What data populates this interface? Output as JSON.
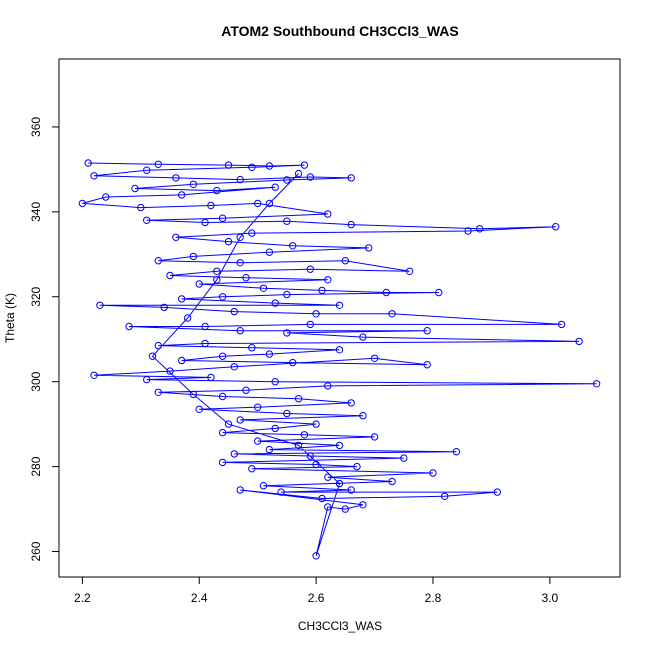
{
  "chart_data": {
    "type": "scatter",
    "title": "ATOM2 Southbound CH3CCl3_WAS",
    "xlabel": "CH3CCl3_WAS",
    "ylabel": "Theta (K)",
    "xlim": [
      2.16,
      3.12
    ],
    "ylim": [
      254,
      376
    ],
    "xticks": [
      2.2,
      2.4,
      2.6,
      2.8,
      3.0
    ],
    "xtick_labels": [
      "2.2",
      "2.4",
      "2.6",
      "2.8",
      "3.0"
    ],
    "yticks": [
      260,
      280,
      300,
      320,
      340,
      360
    ],
    "ytick_labels": [
      "260",
      "280",
      "300",
      "320",
      "340",
      "360"
    ],
    "grid": false,
    "series": [
      {
        "color": "#0000ff",
        "marker": "open-circle",
        "connected": true,
        "points": [
          [
            2.21,
            351.5
          ],
          [
            2.33,
            351.2
          ],
          [
            2.45,
            351.0
          ],
          [
            2.52,
            350.8
          ],
          [
            2.58,
            351.0
          ],
          [
            2.49,
            350.5
          ],
          [
            2.31,
            349.8
          ],
          [
            2.22,
            348.5
          ],
          [
            2.36,
            348.0
          ],
          [
            2.47,
            347.6
          ],
          [
            2.59,
            348.2
          ],
          [
            2.66,
            348.0
          ],
          [
            2.55,
            347.5
          ],
          [
            2.39,
            346.5
          ],
          [
            2.29,
            345.5
          ],
          [
            2.43,
            345.0
          ],
          [
            2.53,
            345.8
          ],
          [
            2.37,
            344.0
          ],
          [
            2.24,
            343.5
          ],
          [
            2.2,
            342.0
          ],
          [
            2.3,
            341.0
          ],
          [
            2.42,
            341.5
          ],
          [
            2.5,
            342.0
          ],
          [
            2.62,
            339.5
          ],
          [
            2.44,
            338.5
          ],
          [
            2.31,
            338.0
          ],
          [
            2.41,
            337.5
          ],
          [
            2.55,
            337.8
          ],
          [
            2.66,
            337.0
          ],
          [
            2.88,
            336.0
          ],
          [
            3.01,
            336.5
          ],
          [
            2.86,
            335.5
          ],
          [
            2.49,
            335.0
          ],
          [
            2.36,
            334.0
          ],
          [
            2.45,
            333.0
          ],
          [
            2.56,
            332.0
          ],
          [
            2.69,
            331.5
          ],
          [
            2.52,
            330.5
          ],
          [
            2.39,
            329.5
          ],
          [
            2.33,
            328.5
          ],
          [
            2.47,
            328.0
          ],
          [
            2.65,
            328.5
          ],
          [
            2.76,
            326.0
          ],
          [
            2.59,
            326.5
          ],
          [
            2.43,
            326.0
          ],
          [
            2.35,
            325.0
          ],
          [
            2.48,
            324.5
          ],
          [
            2.62,
            324.0
          ],
          [
            2.4,
            323.0
          ],
          [
            2.51,
            322.0
          ],
          [
            2.61,
            321.5
          ],
          [
            2.72,
            321.0
          ],
          [
            2.81,
            321.0
          ],
          [
            2.55,
            320.5
          ],
          [
            2.44,
            320.0
          ],
          [
            2.37,
            319.5
          ],
          [
            2.53,
            318.5
          ],
          [
            2.64,
            318.0
          ],
          [
            2.23,
            318.0
          ],
          [
            2.34,
            317.5
          ],
          [
            2.46,
            316.5
          ],
          [
            2.6,
            316.0
          ],
          [
            2.73,
            316.0
          ],
          [
            3.02,
            313.5
          ],
          [
            2.59,
            313.5
          ],
          [
            2.41,
            313.0
          ],
          [
            2.28,
            313.0
          ],
          [
            2.47,
            312.0
          ],
          [
            2.79,
            312.0
          ],
          [
            2.55,
            311.5
          ],
          [
            2.68,
            310.5
          ],
          [
            3.05,
            309.5
          ],
          [
            2.41,
            309.0
          ],
          [
            2.33,
            308.5
          ],
          [
            2.49,
            308.0
          ],
          [
            2.64,
            307.5
          ],
          [
            2.52,
            306.5
          ],
          [
            2.44,
            306.0
          ],
          [
            2.37,
            305.0
          ],
          [
            2.56,
            304.5
          ],
          [
            2.79,
            304.0
          ],
          [
            2.7,
            305.5
          ],
          [
            2.46,
            303.5
          ],
          [
            2.35,
            302.5
          ],
          [
            2.22,
            301.5
          ],
          [
            2.42,
            301.0
          ],
          [
            2.31,
            300.5
          ],
          [
            2.53,
            300.0
          ],
          [
            3.08,
            299.5
          ],
          [
            2.62,
            299.0
          ],
          [
            2.48,
            298.0
          ],
          [
            2.33,
            297.5
          ],
          [
            2.44,
            296.5
          ],
          [
            2.57,
            296.0
          ],
          [
            2.66,
            295.0
          ],
          [
            2.5,
            294.0
          ],
          [
            2.4,
            293.5
          ],
          [
            2.55,
            292.5
          ],
          [
            2.68,
            292.0
          ],
          [
            2.47,
            291.0
          ],
          [
            2.6,
            290.0
          ],
          [
            2.53,
            289.0
          ],
          [
            2.44,
            288.0
          ],
          [
            2.58,
            287.5
          ],
          [
            2.7,
            287.0
          ],
          [
            2.5,
            286.0
          ],
          [
            2.64,
            285.0
          ],
          [
            2.52,
            284.0
          ],
          [
            2.84,
            283.5
          ],
          [
            2.46,
            283.0
          ],
          [
            2.59,
            282.5
          ],
          [
            2.75,
            282.0
          ],
          [
            2.44,
            281.0
          ],
          [
            2.6,
            280.5
          ],
          [
            2.67,
            280.0
          ],
          [
            2.49,
            279.5
          ],
          [
            2.8,
            278.5
          ],
          [
            2.62,
            277.5
          ],
          [
            2.73,
            276.5
          ],
          [
            2.51,
            275.5
          ],
          [
            2.66,
            274.5
          ],
          [
            2.54,
            274.0
          ],
          [
            2.91,
            274.0
          ],
          [
            2.82,
            273.0
          ],
          [
            2.61,
            272.5
          ],
          [
            2.47,
            274.5
          ],
          [
            2.68,
            271.0
          ],
          [
            2.65,
            270.0
          ],
          [
            2.62,
            270.5
          ],
          [
            2.6,
            259.0
          ],
          [
            2.64,
            276.0
          ],
          [
            2.57,
            285.0
          ],
          [
            2.45,
            290.0
          ],
          [
            2.39,
            297.0
          ],
          [
            2.32,
            306.0
          ],
          [
            2.38,
            315.0
          ],
          [
            2.43,
            324.0
          ],
          [
            2.47,
            334.0
          ],
          [
            2.52,
            342.0
          ],
          [
            2.57,
            349.0
          ]
        ]
      }
    ]
  }
}
